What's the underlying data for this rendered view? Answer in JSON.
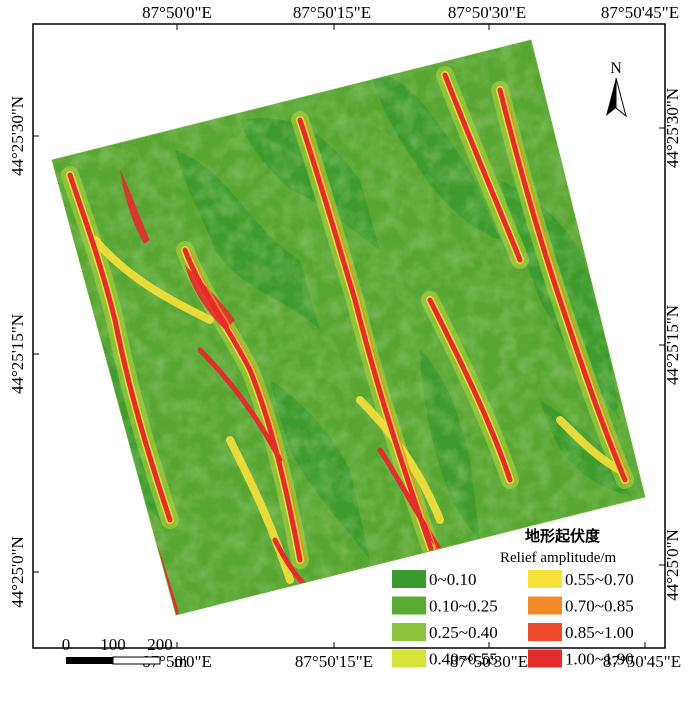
{
  "graticule": {
    "longitude_labels": [
      "87°50'0\"E",
      "87°50'15\"E",
      "87°50'30\"E",
      "87°50'45\"E"
    ],
    "bottom_longitude_labels": [
      "87°50'0\"E",
      "87°50'15\"E",
      "87°50'30\"E",
      "87°50'45\"E"
    ],
    "latitude_labels": [
      "44°25'30\"N",
      "44°25'15\"N",
      "44°25'0\"N"
    ]
  },
  "north_arrow": {
    "label": "N",
    "icon": "north-arrow-icon"
  },
  "legend": {
    "title_cn": "地形起伏度",
    "title_en": "Relief amplitude/m",
    "classes": [
      {
        "label": "0~0.10",
        "color": "#3a9a2e"
      },
      {
        "label": "0.10~0.25",
        "color": "#5aab32"
      },
      {
        "label": "0.25~0.40",
        "color": "#8cc23c"
      },
      {
        "label": "0.40~0.55",
        "color": "#d4e43a"
      },
      {
        "label": "0.55~0.70",
        "color": "#f7e03a"
      },
      {
        "label": "0.70~0.85",
        "color": "#f38a28"
      },
      {
        "label": "0.85~1.00",
        "color": "#ec4a2a"
      },
      {
        "label": "1.00~1.90",
        "color": "#e32c2c"
      }
    ]
  },
  "scale_bar": {
    "ticks": [
      "0",
      "100",
      "200"
    ],
    "unit": "m"
  }
}
